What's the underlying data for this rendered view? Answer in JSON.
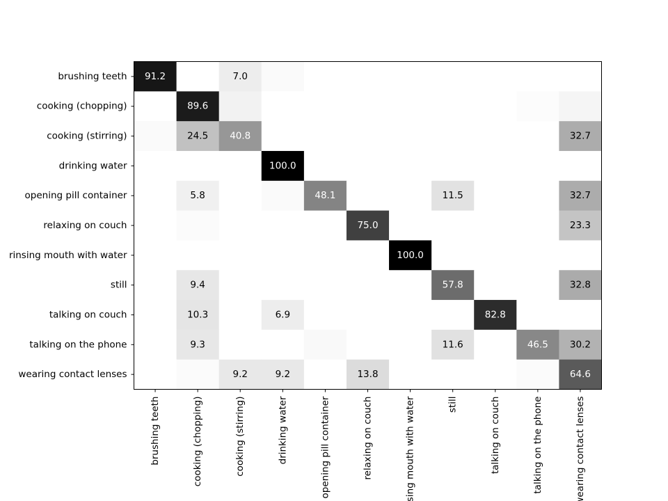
{
  "chart_data": {
    "type": "heatmap",
    "title": "",
    "xlabel": "",
    "ylabel": "",
    "colormap": "gray_r",
    "value_range": [
      0,
      100
    ],
    "grid": false,
    "rows": [
      "brushing teeth",
      "cooking (chopping)",
      "cooking (stirring)",
      "drinking water",
      "opening pill container",
      "relaxing on couch",
      "rinsing mouth with water",
      "still",
      "talking on couch",
      "talking on the phone",
      "wearing contact lenses"
    ],
    "columns": [
      "brushing teeth",
      "cooking (chopping)",
      "cooking (stirring)",
      "drinking water",
      "opening pill container",
      "relaxing on couch",
      "rinsing mouth with water",
      "still",
      "talking on couch",
      "talking on the phone",
      "wearing contact lenses"
    ],
    "values": [
      [
        91.2,
        0,
        7.0,
        1.8,
        0,
        0,
        0,
        0,
        0,
        0,
        0
      ],
      [
        0,
        89.6,
        5.2,
        0,
        0,
        0,
        0,
        0,
        0,
        1.3,
        3.9
      ],
      [
        2.0,
        24.5,
        40.8,
        0,
        0,
        0,
        0,
        0,
        0,
        0,
        32.7
      ],
      [
        0,
        0,
        0,
        100.0,
        0,
        0,
        0,
        0,
        0,
        0,
        0
      ],
      [
        0,
        5.8,
        0,
        1.9,
        48.1,
        0,
        0,
        11.5,
        0,
        0,
        32.7
      ],
      [
        0,
        1.7,
        0,
        0,
        0,
        75.0,
        0,
        0,
        0,
        0,
        23.3
      ],
      [
        0,
        0,
        0,
        0,
        0,
        0,
        100.0,
        0,
        0,
        0,
        0
      ],
      [
        0,
        9.4,
        0,
        0,
        0,
        0,
        0,
        57.8,
        0,
        0,
        32.8
      ],
      [
        0,
        10.3,
        0,
        6.9,
        0,
        0,
        0,
        0,
        82.8,
        0,
        0
      ],
      [
        0,
        9.3,
        0,
        0,
        2.3,
        0,
        0,
        11.6,
        0,
        46.5,
        30.2
      ],
      [
        0,
        1.5,
        9.2,
        9.2,
        0,
        13.8,
        0,
        0,
        0,
        1.5,
        64.6
      ]
    ],
    "labels": [
      [
        "91.2",
        "",
        "7.0",
        "",
        "",
        "",
        "",
        "",
        "",
        "",
        ""
      ],
      [
        "",
        "89.6",
        "",
        "",
        "",
        "",
        "",
        "",
        "",
        "",
        ""
      ],
      [
        "",
        "24.5",
        "40.8",
        "",
        "",
        "",
        "",
        "",
        "",
        "",
        "32.7"
      ],
      [
        "",
        "",
        "",
        "100.0",
        "",
        "",
        "",
        "",
        "",
        "",
        ""
      ],
      [
        "",
        "5.8",
        "",
        "",
        "48.1",
        "",
        "",
        "11.5",
        "",
        "",
        "32.7"
      ],
      [
        "",
        "",
        "",
        "",
        "",
        "75.0",
        "",
        "",
        "",
        "",
        "23.3"
      ],
      [
        "",
        "",
        "",
        "",
        "",
        "",
        "100.0",
        "",
        "",
        "",
        ""
      ],
      [
        "",
        "9.4",
        "",
        "",
        "",
        "",
        "",
        "57.8",
        "",
        "",
        "32.8"
      ],
      [
        "",
        "10.3",
        "",
        "6.9",
        "",
        "",
        "",
        "",
        "82.8",
        "",
        ""
      ],
      [
        "",
        "9.3",
        "",
        "",
        "",
        "",
        "",
        "11.6",
        "",
        "46.5",
        "30.2"
      ],
      [
        "",
        "",
        "9.2",
        "9.2",
        "",
        "13.8",
        "",
        "",
        "",
        "",
        "64.6"
      ]
    ]
  }
}
